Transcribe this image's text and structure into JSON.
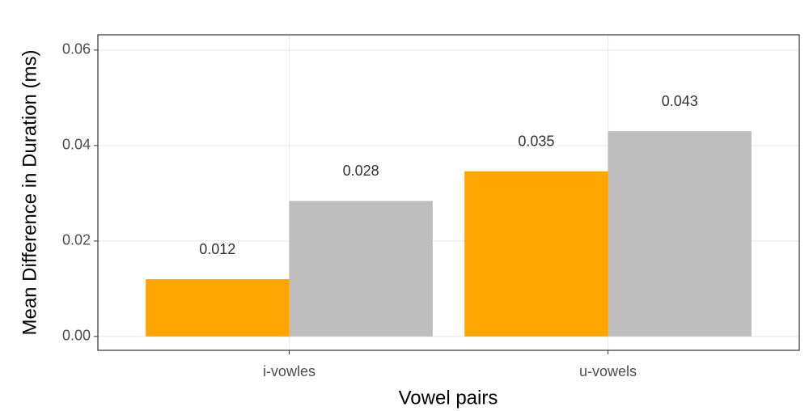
{
  "chart_data": {
    "type": "bar",
    "xlabel": "Vowel pairs",
    "ylabel": "Mean Difference in Duration (ms)",
    "categories": [
      "i-vowles",
      "u-vowels"
    ],
    "series": [
      {
        "color": "#FFA500",
        "values": [
          0.012,
          0.0346
        ],
        "value_labels": [
          "0.012",
          "0.035"
        ]
      },
      {
        "color": "#BEBEBE",
        "values": [
          0.0284,
          0.043
        ],
        "value_labels": [
          "0.028",
          "0.043"
        ]
      }
    ],
    "ylim": [
      -0.0029,
      0.0632
    ],
    "yticks": [
      {
        "value": 0,
        "label": "0.00"
      },
      0.02,
      0.04,
      0.06
    ],
    "grid": true
  }
}
